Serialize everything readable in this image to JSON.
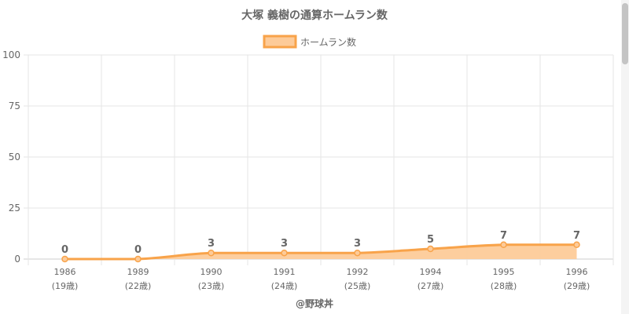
{
  "title": "大塚 義樹の通算ホームラン数",
  "watermark": "@野球丼",
  "colors": {
    "line": "#f8a34a",
    "fill": "#fdcb99",
    "grid": "#e6e6e6",
    "text": "#666666"
  },
  "chart_data": {
    "type": "area",
    "title": "大塚 義樹の通算ホームラン数",
    "legend": {
      "position": "top",
      "entries": [
        "ホームラン数"
      ]
    },
    "categories": [
      "1986",
      "1989",
      "1990",
      "1991",
      "1992",
      "1994",
      "1995",
      "1996"
    ],
    "category_sublabels": [
      "(19歳)",
      "(22歳)",
      "(23歳)",
      "(24歳)",
      "(25歳)",
      "(27歳)",
      "(28歳)",
      "(29歳)"
    ],
    "series": [
      {
        "name": "ホームラン数",
        "values": [
          0,
          0,
          3,
          3,
          3,
          5,
          7,
          7
        ]
      }
    ],
    "ylim": [
      0,
      100
    ],
    "yticks": [
      0,
      25,
      50,
      75,
      100
    ],
    "grid": true,
    "data_labels": true
  }
}
